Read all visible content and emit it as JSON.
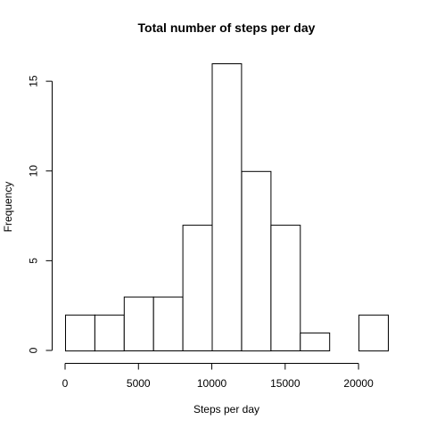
{
  "chart_data": {
    "type": "bar",
    "title": "Total number of steps per day",
    "xlabel": "Steps per day",
    "ylabel": "Frequency",
    "bins": [
      {
        "from": 0,
        "to": 2000,
        "count": 2
      },
      {
        "from": 2000,
        "to": 4000,
        "count": 2
      },
      {
        "from": 4000,
        "to": 6000,
        "count": 3
      },
      {
        "from": 6000,
        "to": 8000,
        "count": 3
      },
      {
        "from": 8000,
        "to": 10000,
        "count": 7
      },
      {
        "from": 10000,
        "to": 12000,
        "count": 16
      },
      {
        "from": 12000,
        "to": 14000,
        "count": 10
      },
      {
        "from": 14000,
        "to": 16000,
        "count": 7
      },
      {
        "from": 16000,
        "to": 18000,
        "count": 1
      },
      {
        "from": 18000,
        "to": 20000,
        "count": 0
      },
      {
        "from": 20000,
        "to": 22000,
        "count": 2
      }
    ],
    "xlim": [
      0,
      22000
    ],
    "ylim": [
      0,
      16
    ],
    "xticks": [
      "0",
      "5000",
      "10000",
      "15000",
      "20000"
    ],
    "yticks": [
      "0",
      "5",
      "10",
      "15"
    ],
    "grid": false,
    "bar_fill": "#ffffff",
    "bar_stroke": "#000000"
  }
}
